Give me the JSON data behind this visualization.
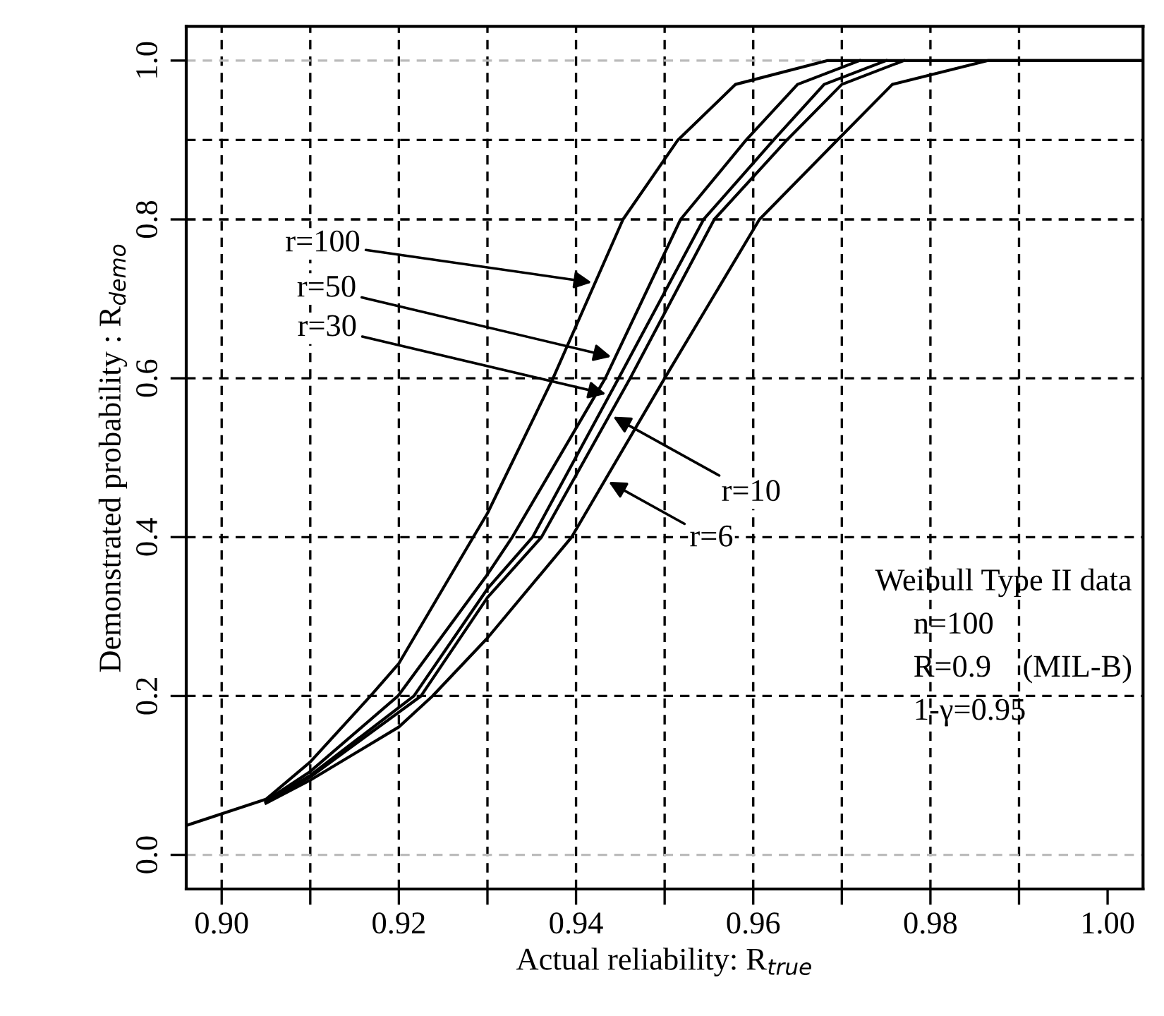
{
  "chart_data": {
    "type": "line",
    "xlabel": "Actual reliability: R$_{true}$",
    "ylabel": "Demonstrated probability : R$_{demo}$",
    "series": [
      {
        "color": "#000000",
        "x": [
          0.896,
          0.905,
          0.91,
          0.9168,
          0.92,
          0.9284,
          0.93,
          0.9374,
          0.9453,
          0.9515,
          0.958,
          0.9684,
          1.004
        ],
        "values": [
          0.037,
          0.07,
          0.117,
          0.2,
          0.241,
          0.4,
          0.43,
          0.6,
          0.8,
          0.9,
          0.97,
          1.0,
          1.0
        ]
      },
      {
        "color": "#000000",
        "x": [
          0.905,
          0.91,
          0.9199,
          0.93,
          0.9328,
          0.9433,
          0.9518,
          0.9592,
          0.965,
          0.972
        ],
        "values": [
          0.068,
          0.105,
          0.2,
          0.353,
          0.4,
          0.6,
          0.8,
          0.9,
          0.97,
          1.0
        ]
      },
      {
        "color": "#000000",
        "x": [
          0.905,
          0.91,
          0.9217,
          0.93,
          0.9351,
          0.9448,
          0.9544,
          0.9623,
          0.968,
          0.975
        ],
        "values": [
          0.067,
          0.1,
          0.2,
          0.335,
          0.4,
          0.6,
          0.8,
          0.9,
          0.97,
          1.0
        ]
      },
      {
        "color": "#000000",
        "x": [
          0.905,
          0.91,
          0.9225,
          0.93,
          0.9361,
          0.9461,
          0.9556,
          0.9638,
          0.97,
          0.977
        ],
        "values": [
          0.066,
          0.098,
          0.2,
          0.324,
          0.4,
          0.6,
          0.8,
          0.9,
          0.97,
          1.0
        ]
      },
      {
        "color": "#000000",
        "x": [
          0.905,
          0.91,
          0.92,
          0.9238,
          0.93,
          0.9395,
          0.95,
          0.9607,
          0.9695,
          0.9757,
          0.9865,
          1.004
        ],
        "values": [
          0.065,
          0.094,
          0.161,
          0.2,
          0.273,
          0.4,
          0.6,
          0.8,
          0.9,
          0.97,
          1.0,
          1.0
        ]
      }
    ],
    "xlim": [
      0.896,
      1.004
    ],
    "ylim": [
      -0.043,
      1.043
    ],
    "xticks": [
      {
        "value": 0.9,
        "label": "0.90"
      },
      {
        "value": 0.91,
        "label": null
      },
      {
        "value": 0.92,
        "label": "0.92"
      },
      {
        "value": 0.93,
        "label": null
      },
      {
        "value": 0.94,
        "label": "0.94"
      },
      {
        "value": 0.95,
        "label": null
      },
      {
        "value": 0.96,
        "label": "0.96"
      },
      {
        "value": 0.97,
        "label": null
      },
      {
        "value": 0.98,
        "label": "0.98"
      },
      {
        "value": 0.99,
        "label": null
      },
      {
        "value": 1.0,
        "label": "1.00"
      }
    ],
    "yticks": [
      {
        "value": 0,
        "label": "0.0"
      },
      {
        "value": 0.2,
        "label": "0.2"
      },
      {
        "value": 0.4,
        "label": "0.4"
      },
      {
        "value": 0.6,
        "label": "0.6"
      },
      {
        "value": 0.8,
        "label": "0.8"
      },
      {
        "value": 1.0,
        "label": "1.0"
      }
    ],
    "ref_lines": [
      {
        "axis": "x",
        "value": 0.9,
        "color": "#000000",
        "line_style": "dashed"
      },
      {
        "axis": "x",
        "value": 0.91,
        "color": "#000000",
        "line_style": "dashed"
      },
      {
        "axis": "x",
        "value": 0.92,
        "color": "#000000",
        "line_style": "dashed"
      },
      {
        "axis": "x",
        "value": 0.93,
        "color": "#000000",
        "line_style": "dashed"
      },
      {
        "axis": "x",
        "value": 0.94,
        "color": "#000000",
        "line_style": "dashed"
      },
      {
        "axis": "x",
        "value": 0.95,
        "color": "#000000",
        "line_style": "dashed"
      },
      {
        "axis": "x",
        "value": 0.96,
        "color": "#000000",
        "line_style": "dashed"
      },
      {
        "axis": "x",
        "value": 0.97,
        "color": "#000000",
        "line_style": "dashed"
      },
      {
        "axis": "x",
        "value": 0.98,
        "color": "#000000",
        "line_style": "dashed"
      },
      {
        "axis": "x",
        "value": 0.99,
        "color": "#000000",
        "line_style": "dashed"
      },
      {
        "axis": "y",
        "value": 0,
        "color": "#bbbbbb",
        "line_style": "dashed"
      },
      {
        "axis": "y",
        "value": 0.2,
        "color": "#000000",
        "line_style": "dashed"
      },
      {
        "axis": "y",
        "value": 0.4,
        "color": "#000000",
        "line_style": "dashed"
      },
      {
        "axis": "y",
        "value": 0.6,
        "color": "#000000",
        "line_style": "dashed"
      },
      {
        "axis": "y",
        "value": 0.8,
        "color": "#000000",
        "line_style": "dashed"
      },
      {
        "axis": "y",
        "value": 0.9,
        "color": "#000000",
        "line_style": "dashed"
      },
      {
        "axis": "y",
        "value": 1.0,
        "color": "#bbbbbb",
        "line_style": "dashed"
      }
    ],
    "annotations": [
      {
        "text": "r=100",
        "x": 0.9422,
        "y": 0.72
      },
      {
        "text": "r=50",
        "x": 0.9444,
        "y": 0.626
      },
      {
        "text": "r=30",
        "x": 0.9438,
        "y": 0.579
      },
      {
        "text": "r=10",
        "x": 0.9438,
        "y": 0.554
      },
      {
        "text": "r=6",
        "x": 0.9433,
        "y": 0.472
      },
      "Weibull Type II data",
      "n=100",
      "R=0.9    (MIL-B)",
      "1-γ=0.95"
    ],
    "grid": false,
    "marker": "none",
    "line_style": "solid"
  }
}
